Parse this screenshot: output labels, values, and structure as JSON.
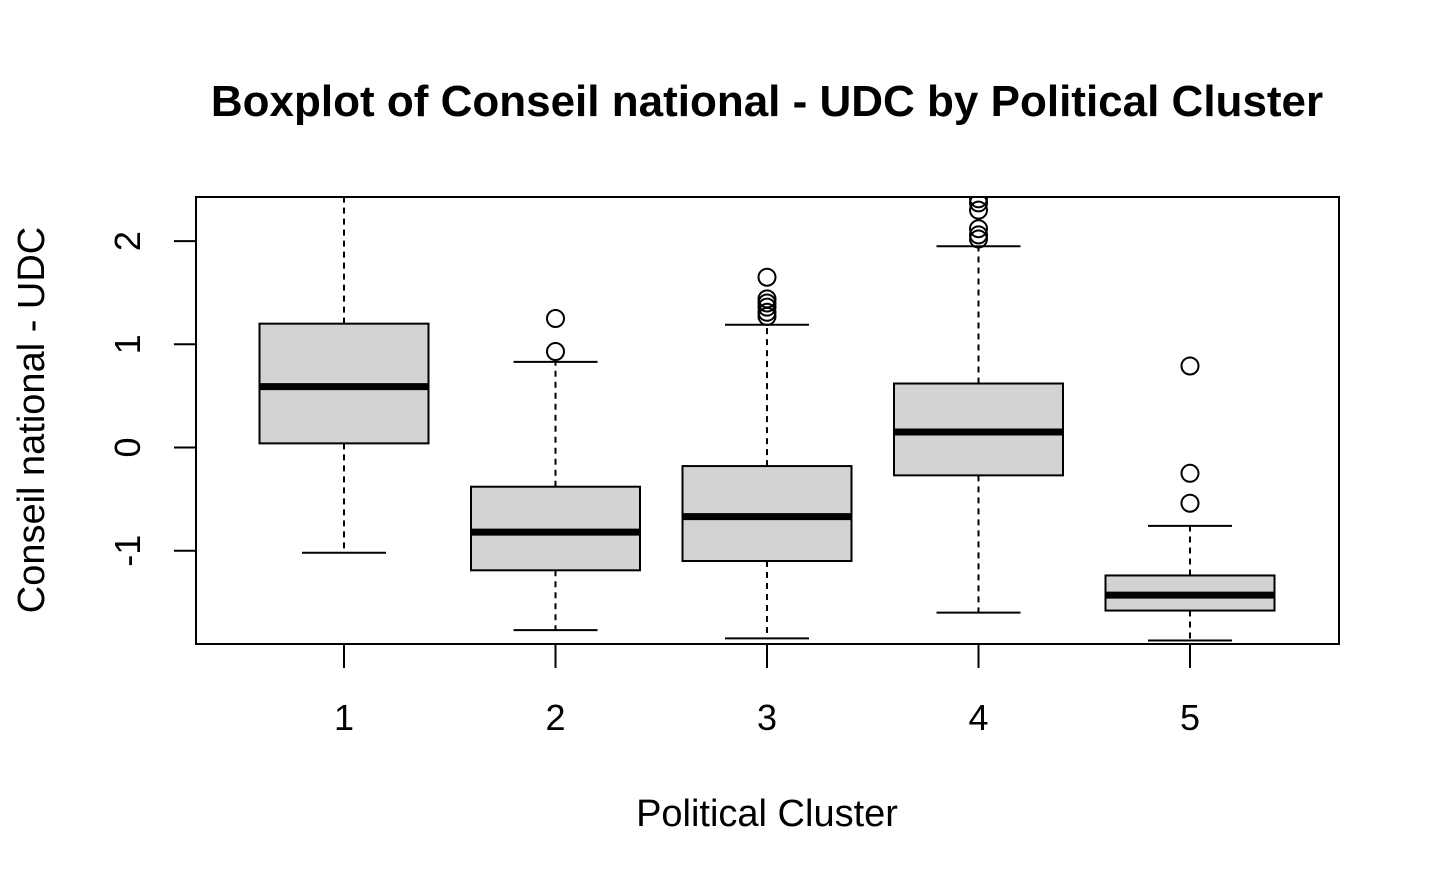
{
  "chart_data": {
    "type": "boxplot",
    "title": "Boxplot of Conseil national - UDC by Political Cluster",
    "xlabel": "Political Cluster",
    "ylabel": "Conseil national - UDC",
    "categories": [
      "1",
      "2",
      "3",
      "4",
      "5"
    ],
    "y_ticks": [
      "-1",
      "0",
      "1",
      "2"
    ],
    "y_tick_values": [
      -1,
      0,
      1,
      2
    ],
    "ylim": [
      -1.9,
      2.43
    ],
    "grid": false,
    "colors": {
      "box_fill": "#d3d3d3",
      "stroke": "#000000"
    },
    "boxes": [
      {
        "category": "1",
        "whisker_low": -1.02,
        "q1": 0.04,
        "median": 0.59,
        "q3": 1.2,
        "whisker_high": 2.43,
        "outliers": []
      },
      {
        "category": "2",
        "whisker_low": -1.77,
        "q1": -1.19,
        "median": -0.82,
        "q3": -0.38,
        "whisker_high": 0.83,
        "outliers": [
          0.93,
          1.25
        ]
      },
      {
        "category": "3",
        "whisker_low": -1.85,
        "q1": -1.1,
        "median": -0.67,
        "q3": -0.18,
        "whisker_high": 1.19,
        "outliers": [
          1.27,
          1.31,
          1.36,
          1.4,
          1.44,
          1.65
        ]
      },
      {
        "category": "4",
        "whisker_low": -1.6,
        "q1": -0.27,
        "median": 0.15,
        "q3": 0.62,
        "whisker_high": 1.95,
        "outliers": [
          2.02,
          2.06,
          2.12,
          2.3,
          2.37,
          2.41
        ]
      },
      {
        "category": "5",
        "whisker_low": -1.87,
        "q1": -1.58,
        "median": -1.43,
        "q3": -1.24,
        "whisker_high": -0.76,
        "outliers": [
          -0.54,
          -0.25,
          0.79
        ]
      }
    ]
  }
}
